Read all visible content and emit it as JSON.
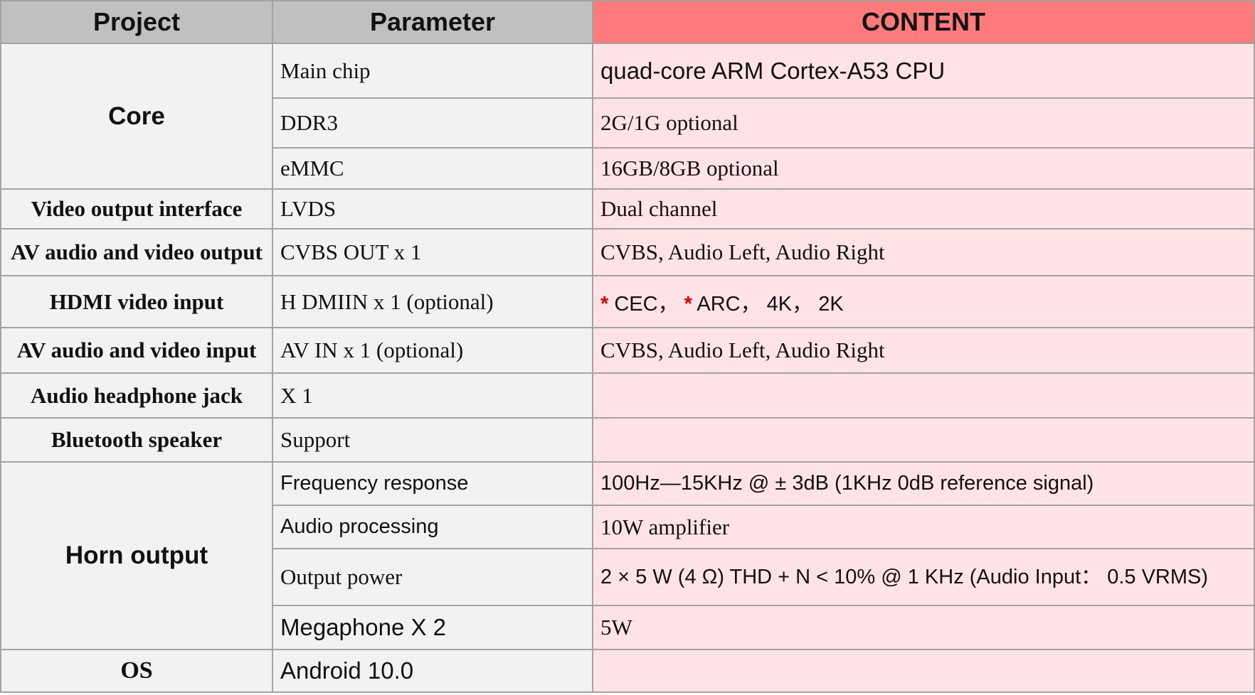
{
  "headers": {
    "project": "Project",
    "parameter": "Parameter",
    "content": "CONTENT"
  },
  "colors": {
    "header_bg": "#c0c0c0",
    "content_header_bg": "#ff7b7b",
    "content_cell_bg": "#ffe3e6",
    "cell_bg": "#f2f2f2",
    "asterisk": "#e00000"
  },
  "rows": {
    "core": {
      "project": "Core",
      "main_chip": "Main chip",
      "main_chip_v": "quad-core ARM Cortex-A53 CPU",
      "ddr3": "DDR3",
      "ddr3_v": "2G/1G optional",
      "emmc": "eMMC",
      "emmc_v": "16GB/8GB optional"
    },
    "video_out": {
      "project": "Video output interface",
      "param": "LVDS",
      "value": "Dual channel"
    },
    "av_out": {
      "project": "AV audio and video output",
      "param": "CVBS OUT x 1",
      "value": "CVBS, Audio Left, Audio Right"
    },
    "hdmi": {
      "project": "HDMI video input",
      "param": "H DMIIN x 1 (optional)",
      "star": "*",
      "cec": " CEC， ",
      "rest": " ARC， 4K， 2K"
    },
    "av_in": {
      "project": "AV audio and video input",
      "param": "AV IN x 1 (optional)",
      "value": "CVBS, Audio Left, Audio Right"
    },
    "headphone": {
      "project": "Audio headphone jack",
      "param": "X 1",
      "value": ""
    },
    "bluetooth": {
      "project": "Bluetooth speaker",
      "param": "Support",
      "value": ""
    },
    "horn": {
      "project": "Horn output",
      "freq": "Frequency  response",
      "freq_v": "100Hz—15KHz  @  ±  3dB  (1KHz  0dB  reference  signal)",
      "proc": "Audio  processing",
      "proc_v": "10W amplifier",
      "power": "Output power",
      "power_v": "2  ×  5  W  (4  Ω)  THD  +  N  <  10%  @  1  KHz  (Audio  Input：  0.5  VRMS)",
      "mega": "Megaphone X 2",
      "mega_v": "5W"
    },
    "os": {
      "project": "OS",
      "param": "Android  10.0",
      "value": ""
    }
  }
}
